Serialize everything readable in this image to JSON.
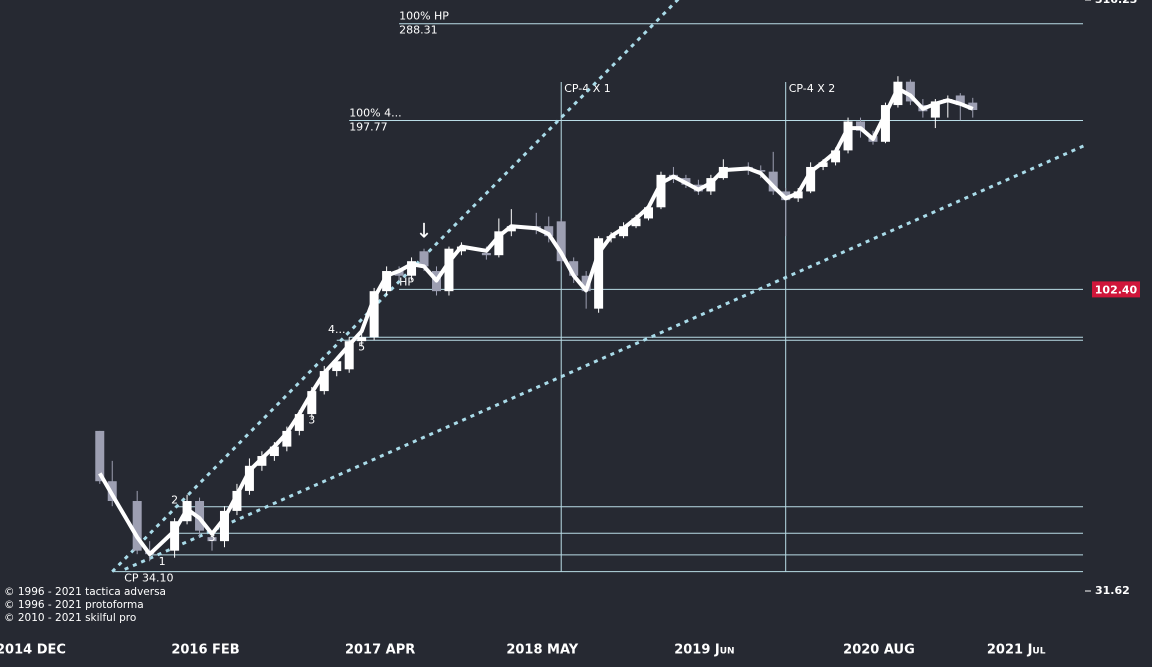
{
  "chart_data": {
    "type": "candlestick",
    "log_scale": true,
    "x": [
      "2015-06",
      "2015-07",
      "2015-09",
      "2015-10",
      "2015-12",
      "2016-01",
      "2016-02",
      "2016-03",
      "2016-04",
      "2016-05",
      "2016-06",
      "2016-07",
      "2016-08",
      "2016-09",
      "2016-10",
      "2016-11",
      "2016-12",
      "2017-01",
      "2017-02",
      "2017-03",
      "2017-04",
      "2017-05",
      "2017-06",
      "2017-07",
      "2017-08",
      "2017-09",
      "2017-10",
      "2017-11",
      "2018-01",
      "2018-02",
      "2018-03",
      "2018-05",
      "2018-06",
      "2018-07",
      "2018-08",
      "2018-09",
      "2018-10",
      "2018-11",
      "2018-12",
      "2019-01",
      "2019-02",
      "2019-03",
      "2019-04",
      "2019-05",
      "2019-06",
      "2019-07",
      "2019-08",
      "2019-10",
      "2019-11",
      "2019-12",
      "2020-01",
      "2020-02",
      "2020-03",
      "2020-04",
      "2020-05",
      "2020-06",
      "2020-07",
      "2020-08",
      "2020-09",
      "2020-10",
      "2020-11",
      "2020-12",
      "2021-01",
      "2021-02",
      "2021-03",
      "2021-04"
    ],
    "open": [
      59.0,
      48.5,
      44.9,
      37.0,
      37.0,
      41.5,
      44.9,
      39.0,
      38.4,
      43.2,
      46.7,
      51.5,
      53.5,
      55.5,
      59.0,
      63.0,
      68.9,
      74.5,
      75.0,
      83.7,
      85.0,
      101.7,
      110.0,
      108.0,
      118.8,
      110.0,
      101.7,
      118.8,
      118.0,
      117.0,
      128.4,
      131.0,
      131.0,
      133.5,
      114.3,
      108.0,
      95.0,
      125.0,
      126.0,
      131.0,
      135.0,
      141.0,
      160.0,
      158.0,
      154.0,
      150.0,
      158.0,
      165.0,
      163.0,
      162.0,
      150.0,
      146.0,
      150.0,
      165.0,
      168.0,
      176.0,
      197.0,
      186.0,
      182.0,
      210.0,
      230.0,
      210.0,
      200.0,
      213.0,
      218.0,
      212.0
    ],
    "high": [
      59.0,
      52.5,
      46.7,
      38.4,
      42.0,
      46.0,
      45.5,
      40.0,
      44.0,
      48.0,
      53.0,
      54.5,
      56.5,
      60.0,
      64.0,
      70.0,
      76.0,
      78.0,
      85.0,
      87.0,
      103.0,
      112.0,
      112.0,
      116.0,
      120.0,
      112.0,
      121.0,
      123.0,
      121.0,
      135.0,
      140.0,
      138.0,
      136.0,
      135.0,
      116.0,
      110.0,
      126.0,
      128.0,
      133.0,
      137.0,
      143.0,
      162.0,
      165.0,
      160.0,
      157.0,
      160.0,
      170.0,
      168.0,
      166.0,
      175.0,
      152.0,
      152.0,
      168.0,
      170.0,
      178.0,
      200.0,
      200.0,
      190.0,
      212.0,
      235.0,
      232.0,
      215.0,
      215.0,
      218.0,
      220.0,
      216.0
    ],
    "low": [
      48.0,
      44.0,
      36.5,
      35.5,
      36.0,
      41.0,
      39.0,
      37.0,
      37.5,
      42.5,
      46.0,
      50.5,
      52.5,
      54.5,
      58.0,
      62.0,
      68.0,
      73.0,
      74.0,
      82.0,
      84.0,
      100.0,
      106.0,
      106.0,
      110.0,
      100.0,
      100.0,
      117.0,
      115.0,
      116.0,
      126.0,
      127.0,
      123.0,
      112.0,
      105.0,
      95.0,
      93.5,
      123.0,
      125.0,
      130.0,
      134.0,
      140.0,
      155.0,
      152.0,
      148.0,
      148.0,
      157.0,
      160.0,
      158.0,
      148.0,
      126.0,
      144.0,
      149.0,
      163.0,
      166.0,
      174.0,
      185.0,
      180.0,
      181.0,
      208.0,
      210.0,
      200.0,
      192.0,
      200.0,
      198.0,
      200.0
    ],
    "close": [
      48.5,
      44.9,
      37.0,
      36.5,
      41.5,
      44.9,
      40.0,
      38.4,
      43.2,
      46.7,
      51.5,
      53.5,
      55.5,
      59.0,
      63.0,
      68.9,
      74.5,
      77.4,
      83.7,
      85.0,
      101.7,
      110.0,
      108.0,
      114.3,
      112.0,
      101.7,
      120.0,
      121.0,
      117.0,
      128.4,
      131.0,
      129.0,
      126.0,
      114.3,
      108.0,
      101.7,
      125.0,
      126.0,
      131.0,
      135.0,
      141.0,
      160.0,
      158.0,
      154.0,
      150.0,
      158.0,
      165.0,
      163.0,
      162.0,
      150.0,
      145.0,
      150.0,
      165.0,
      168.0,
      176.0,
      197.0,
      190.0,
      182.0,
      210.0,
      230.0,
      213.0,
      205.0,
      213.0,
      215.0,
      210.0,
      206.0
    ],
    "smooth": [
      50,
      46,
      39,
      36.5,
      40,
      43.5,
      42,
      39.5,
      42,
      46,
      50.5,
      53,
      55.5,
      58.5,
      63,
      68.5,
      74,
      78,
      82.5,
      87,
      99,
      108,
      110,
      113,
      112,
      106,
      114,
      121,
      119,
      126,
      131,
      130,
      127,
      118,
      108,
      102,
      118,
      126,
      130,
      135,
      141,
      155,
      159,
      155,
      151,
      155,
      163,
      164,
      161,
      153,
      146,
      149,
      162,
      168,
      175,
      192,
      192,
      184,
      203,
      224,
      218,
      207,
      211,
      214,
      211,
      207
    ],
    "up_color": "#ffffff",
    "down_color": "#9d9fb2",
    "xlim": [
      "2014-10",
      "2022-01"
    ],
    "xticks": [
      {
        "value": "2014-12",
        "label": "2014 DEC"
      },
      {
        "value": "2016-02",
        "label": "2016 FEB"
      },
      {
        "value": "2017-04",
        "label": "2017 APR"
      },
      {
        "value": "2018-05",
        "label": "2018 MAY"
      },
      {
        "value": "2019-06",
        "label": "2019 Jun"
      },
      {
        "value": "2020-08",
        "label": "2020 AUG"
      },
      {
        "value": "2021-07",
        "label": "2021 Jul"
      }
    ],
    "ylim": [
      31.62,
      316.23
    ],
    "yticks": [
      31.62,
      316.23
    ],
    "last_price": {
      "value": 102.4,
      "label": "102.40",
      "color": "#d0163a"
    },
    "levels": [
      {
        "start": "2017-06",
        "value": 288.31,
        "label": "100% HP",
        "value_label": "288.31"
      },
      {
        "start": "2017-02",
        "value": 197.77,
        "label": "100%  4...",
        "value_label": "197.77"
      },
      {
        "start": "2017-06",
        "value": 102.4,
        "label": "HP"
      },
      {
        "start": "2017-02",
        "value": 85.0
      },
      {
        "start": "2017-01",
        "value": 84.0
      },
      {
        "start": "2015-12",
        "value": 43.9
      },
      {
        "start": "2015-12",
        "value": 39.6
      },
      {
        "start": "2015-10",
        "value": 36.4
      },
      {
        "start": "2015-07",
        "value": 34.1,
        "value_label": "CP 34.10"
      }
    ],
    "trendlines": [
      {
        "x": [
          "2015-07",
          "2018-07"
        ],
        "y": [
          34.1,
          200
        ]
      },
      {
        "x": [
          "2015-08",
          "2022-01"
        ],
        "y": [
          34.4,
          179.5
        ]
      }
    ],
    "trend_color": "#a9dbe9",
    "verticals": [
      {
        "x": "2018-07",
        "label": "CP-4 X 1"
      },
      {
        "x": "2020-01",
        "label": "CP-4 X 2"
      }
    ],
    "markers": [
      {
        "x": "2015-11",
        "y": 35.4,
        "label": "1"
      },
      {
        "x": "2015-12",
        "y": 45.0,
        "label": "2"
      },
      {
        "x": "2016-03",
        "y": 38.9,
        "label": "3"
      },
      {
        "x": "2016-11",
        "y": 61.5,
        "label": "3"
      },
      {
        "x": "2017-01",
        "y": 87.4,
        "label": "4..."
      },
      {
        "x": "2017-03",
        "y": 81.7,
        "label": "5"
      },
      {
        "x": "2017-08",
        "y": 128.0,
        "label": "↓"
      }
    ]
  },
  "footer": [
    "© 1996 - 2021 tactica adversa",
    "© 1996 - 2021 protoforma",
    "© 2010 - 2021 skilful pro"
  ]
}
